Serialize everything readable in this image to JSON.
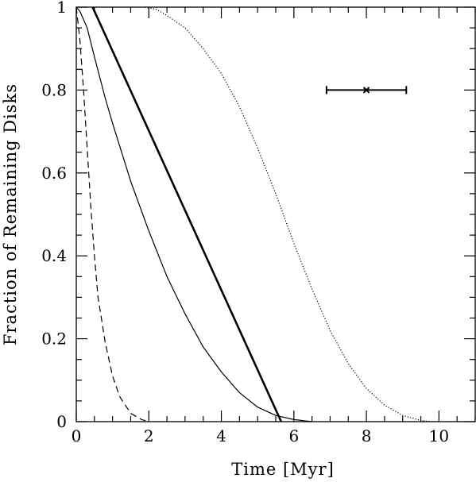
{
  "chart_data": {
    "type": "line",
    "xlabel": "Time [Myr]",
    "ylabel": "Fraction of Remaining Disks",
    "xlim": [
      0,
      11
    ],
    "ylim": [
      0,
      1
    ],
    "x_ticks": [
      0,
      2,
      4,
      6,
      8,
      10
    ],
    "y_ticks": [
      0,
      0.2,
      0.4,
      0.6,
      0.8,
      1
    ],
    "x_tick_labels": [
      "0",
      "2",
      "4",
      "6",
      "8",
      "10"
    ],
    "y_tick_labels": [
      "0",
      "0.2",
      "0.4",
      "0.6",
      "0.8",
      "1"
    ],
    "grid": false,
    "series": [
      {
        "style": "thick-solid",
        "color": "#000000",
        "x": [
          0.45,
          5.65
        ],
        "y": [
          1.0,
          0.0
        ]
      },
      {
        "style": "thin-solid",
        "color": "#000000",
        "x": [
          0.0,
          0.1,
          0.3,
          0.5,
          0.8,
          1.0,
          1.5,
          2.0,
          2.5,
          3.0,
          3.5,
          4.0,
          4.5,
          5.0,
          5.5,
          6.0,
          6.5
        ],
        "y": [
          1.0,
          0.99,
          0.95,
          0.88,
          0.78,
          0.72,
          0.58,
          0.46,
          0.35,
          0.26,
          0.18,
          0.12,
          0.07,
          0.035,
          0.015,
          0.005,
          0.0
        ]
      },
      {
        "style": "dashed",
        "color": "#000000",
        "x": [
          0.0,
          0.1,
          0.2,
          0.3,
          0.4,
          0.5,
          0.6,
          0.8,
          1.0,
          1.2,
          1.5,
          1.8,
          2.0
        ],
        "y": [
          1.0,
          0.92,
          0.8,
          0.66,
          0.52,
          0.4,
          0.3,
          0.19,
          0.11,
          0.06,
          0.02,
          0.005,
          0.0
        ]
      },
      {
        "style": "dotted",
        "color": "#000000",
        "x": [
          1.9,
          2.2,
          2.5,
          3.0,
          3.5,
          4.0,
          4.5,
          5.0,
          5.5,
          6.0,
          6.5,
          7.0,
          7.5,
          8.0,
          8.5,
          9.0,
          9.5,
          9.8
        ],
        "y": [
          1.0,
          0.995,
          0.98,
          0.95,
          0.9,
          0.84,
          0.76,
          0.66,
          0.55,
          0.43,
          0.32,
          0.22,
          0.14,
          0.08,
          0.04,
          0.015,
          0.003,
          0.0
        ]
      }
    ],
    "annotations": [
      {
        "type": "errorbar",
        "marker": "x",
        "x": 8.0,
        "y": 0.8,
        "xerr_low": 6.9,
        "xerr_high": 9.1
      }
    ]
  }
}
